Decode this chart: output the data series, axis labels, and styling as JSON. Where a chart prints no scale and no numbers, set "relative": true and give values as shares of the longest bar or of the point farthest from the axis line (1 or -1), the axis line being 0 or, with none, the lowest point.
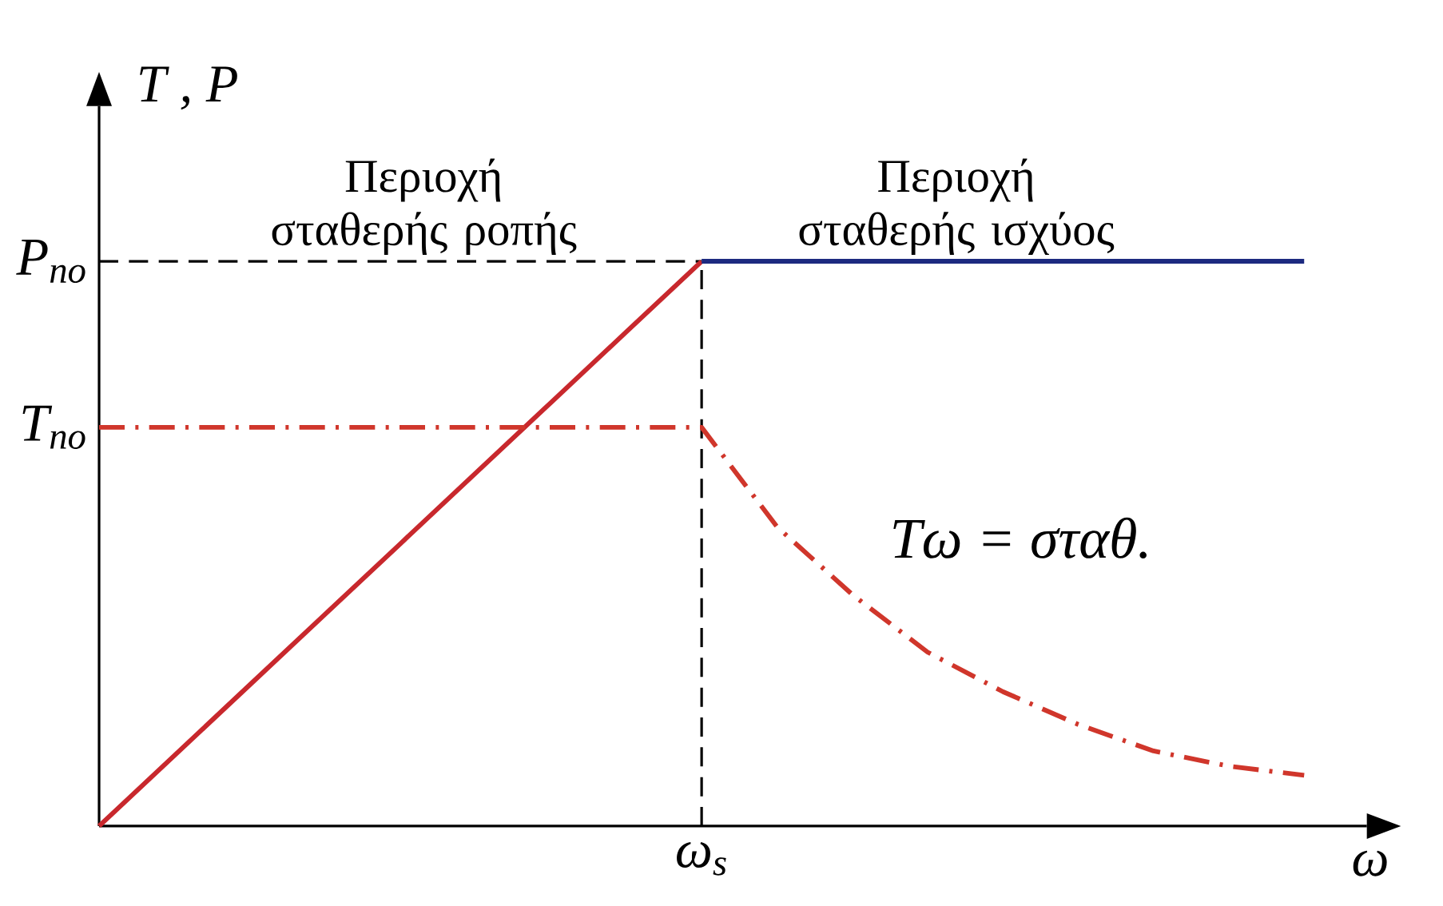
{
  "chart_data": {
    "type": "line",
    "relative": true,
    "xlabel": "ω",
    "ylabel": "T , P",
    "categories": [
      null,
      null,
      null,
      null,
      null,
      null,
      null,
      null,
      null,
      null,
      null,
      null,
      null,
      null,
      null,
      null,
      null
    ],
    "series": [
      {
        "color": "#c8282d",
        "line_style": "solid",
        "values": [
          0,
          0.125,
          0.25,
          0.375,
          0.5,
          0.625,
          0.75,
          0.875,
          1,
          null,
          null,
          null,
          null,
          null,
          null,
          null,
          null
        ]
      },
      {
        "color": "#1c2a80",
        "line_style": "solid",
        "values": [
          null,
          null,
          null,
          null,
          null,
          null,
          null,
          null,
          1,
          1,
          1,
          1,
          1,
          1,
          1,
          1,
          1
        ]
      },
      {
        "color": "#d0362b",
        "line_style": "dashdot",
        "values": [
          0.706,
          0.706,
          0.706,
          0.706,
          0.706,
          0.706,
          0.706,
          0.706,
          0.706,
          0.53,
          0.41,
          0.308,
          0.238,
          0.18,
          0.133,
          0.106,
          0.09
        ]
      }
    ],
    "ref_lines": [
      {
        "axis": "y",
        "value": 1,
        "label": "P$_{no}$",
        "color": "#000000",
        "line_style": "dashed"
      }
    ],
    "annotations": [
      "Περιοχή σταθερής ροπής",
      "Περιοχή σταθερής ισχύος",
      "Tω = σταθ.",
      "T$_{no}$",
      "ω$_{s}$"
    ]
  }
}
